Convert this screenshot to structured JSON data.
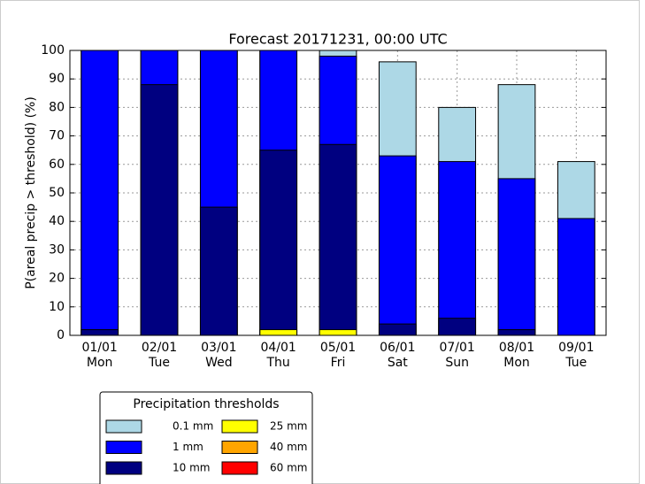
{
  "chart_data": {
    "type": "bar",
    "overlay": true,
    "title": "Forecast 20171231, 00:00 UTC",
    "y_label": "P(areal precip > threshold) (%)",
    "categories": [
      {
        "date": "01/01",
        "day": "Mon"
      },
      {
        "date": "02/01",
        "day": "Tue"
      },
      {
        "date": "03/01",
        "day": "Wed"
      },
      {
        "date": "04/01",
        "day": "Thu"
      },
      {
        "date": "05/01",
        "day": "Fri"
      },
      {
        "date": "06/01",
        "day": "Sat"
      },
      {
        "date": "07/01",
        "day": "Sun"
      },
      {
        "date": "08/01",
        "day": "Mon"
      },
      {
        "date": "09/01",
        "day": "Tue"
      }
    ],
    "series": [
      {
        "name": "0.1 mm",
        "color": "#add8e6",
        "values": [
          100,
          100,
          100,
          100,
          100,
          96,
          80,
          88,
          61
        ]
      },
      {
        "name": "1 mm",
        "color": "#0000ff",
        "values": [
          100,
          100,
          100,
          100,
          98,
          63,
          61,
          55,
          41
        ]
      },
      {
        "name": "10 mm",
        "color": "#000080",
        "values": [
          2,
          88,
          45,
          65,
          67,
          4,
          6,
          2,
          0
        ]
      },
      {
        "name": "25 mm",
        "color": "#ffff00",
        "values": [
          0,
          0,
          0,
          2,
          2,
          0,
          0,
          0,
          0
        ]
      },
      {
        "name": "40 mm",
        "color": "#ffa500",
        "values": [
          0,
          0,
          0,
          0,
          0,
          0,
          0,
          0,
          0
        ]
      },
      {
        "name": "60 mm",
        "color": "#ff0000",
        "values": [
          0,
          0,
          0,
          0,
          0,
          0,
          0,
          0,
          0
        ]
      }
    ],
    "legend_title": "Precipitation thresholds",
    "ylim": [
      0,
      100
    ],
    "yticks": [
      0,
      10,
      20,
      30,
      40,
      50,
      60,
      70,
      80,
      90,
      100
    ],
    "grid": true
  }
}
